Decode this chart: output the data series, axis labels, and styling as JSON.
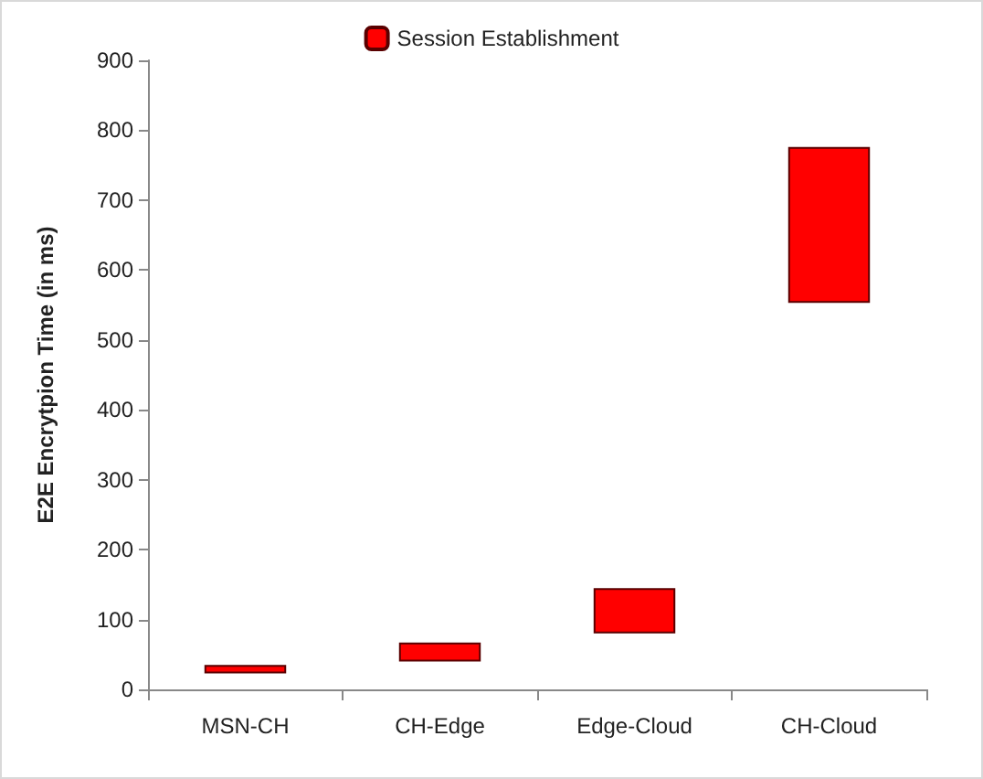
{
  "chart_data": {
    "type": "bar",
    "ylabel": "E2E Encrytpion Time (in ms)",
    "categories": [
      "MSN-CH",
      "CH-Edge",
      "Edge-Cloud",
      "CH-Cloud"
    ],
    "series": [
      {
        "name": "Session Establishment",
        "color": "#ff0000",
        "values": [
          12,
          27,
          65,
          223
        ],
        "base": [
          23,
          40,
          80,
          553
        ]
      }
    ],
    "ylim": [
      0,
      900
    ],
    "yticks": [
      0,
      100,
      200,
      300,
      400,
      500,
      600,
      700,
      800,
      900
    ],
    "grid": false,
    "legend": "top"
  }
}
